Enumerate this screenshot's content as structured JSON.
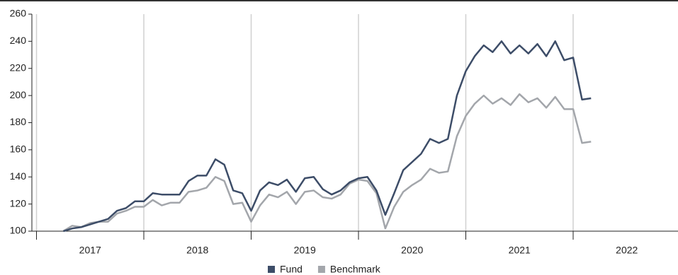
{
  "chart_data": {
    "type": "line",
    "x": [
      2017.25,
      2017.333,
      2017.417,
      2017.5,
      2017.583,
      2017.667,
      2017.75,
      2017.833,
      2017.917,
      2018,
      2018.083,
      2018.167,
      2018.25,
      2018.333,
      2018.417,
      2018.5,
      2018.583,
      2018.667,
      2018.75,
      2018.833,
      2018.917,
      2019,
      2019.083,
      2019.167,
      2019.25,
      2019.333,
      2019.417,
      2019.5,
      2019.583,
      2019.667,
      2019.75,
      2019.833,
      2019.917,
      2020,
      2020.083,
      2020.167,
      2020.25,
      2020.333,
      2020.417,
      2020.5,
      2020.583,
      2020.667,
      2020.75,
      2020.833,
      2020.917,
      2021,
      2021.083,
      2021.167,
      2021.25,
      2021.333,
      2021.417,
      2021.5,
      2021.583,
      2021.667,
      2021.75,
      2021.833,
      2021.917,
      2022,
      2022.083,
      2022.167
    ],
    "series": [
      {
        "name": "Fund",
        "color": "#3d4d68",
        "values": [
          100,
          102,
          103,
          105,
          107,
          109,
          115,
          117,
          122,
          122,
          128,
          127,
          127,
          127,
          137,
          141,
          141,
          153,
          149,
          130,
          128,
          115,
          130,
          136,
          134,
          138,
          129,
          139,
          140,
          131,
          127,
          130,
          136,
          139,
          140,
          130,
          112,
          128,
          145,
          151,
          157,
          168,
          165,
          168,
          200,
          218,
          229,
          237,
          232,
          240,
          231,
          237,
          231,
          238,
          229,
          240,
          226,
          228,
          197,
          198
        ]
      },
      {
        "name": "Benchmark",
        "color": "#a3a6ab",
        "values": [
          100,
          104,
          103,
          106,
          107,
          107,
          113,
          115,
          118,
          118,
          123,
          119,
          121,
          121,
          129,
          130,
          132,
          140,
          137,
          120,
          121,
          107,
          119,
          127,
          125,
          129,
          120,
          129,
          130,
          125,
          124,
          127,
          135,
          138,
          137,
          128,
          102,
          118,
          129,
          134,
          138,
          146,
          143,
          144,
          170,
          185,
          194,
          200,
          194,
          198,
          193,
          201,
          195,
          198,
          191,
          199,
          190,
          190,
          165,
          166
        ]
      }
    ],
    "xlim": [
      2016.957,
      2022.977
    ],
    "xticks": [
      2017,
      2018,
      2019,
      2020,
      2021,
      2022
    ],
    "ylim": [
      100,
      260
    ],
    "yticks": [
      100,
      120,
      140,
      160,
      180,
      200,
      220,
      240,
      260
    ],
    "grid": true,
    "legend": "bottom"
  }
}
